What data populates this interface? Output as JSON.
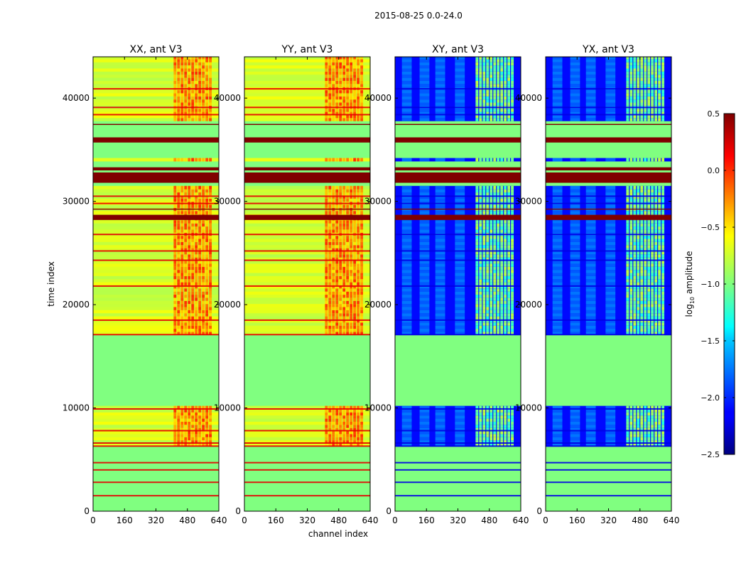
{
  "chart_data": {
    "type": "heatmap",
    "suptitle": "2015-08-25 0.0-24.0",
    "xlabel": "channel index",
    "ylabel": "time index",
    "xlim": [
      0,
      640
    ],
    "ylim": [
      0,
      44000
    ],
    "xticks": [
      0,
      160,
      320,
      480,
      640
    ],
    "xtick_labels": [
      "0",
      "160",
      "320",
      "480",
      "640"
    ],
    "yticks": [
      0,
      10000,
      20000,
      30000,
      40000
    ],
    "ytick_labels": [
      "0",
      "10000",
      "20000",
      "30000",
      "40000"
    ],
    "color_scale": {
      "label_main": "log",
      "label_sub": "10",
      "label_rest": " amplitude",
      "colormap": "jet",
      "vmin": -2.5,
      "vmax": 0.5,
      "ticks": [
        0.5,
        0.0,
        -0.5,
        -1.0,
        -1.5,
        -2.0,
        -2.5
      ],
      "tick_labels": [
        "0.5",
        "0.0",
        "−0.5",
        "−1.0",
        "−1.5",
        "−2.0",
        "−2.5"
      ]
    },
    "panels": [
      {
        "title": "XX, ant V3",
        "kind": "parallel",
        "base_value": -1.0
      },
      {
        "title": "YY, ant V3",
        "kind": "parallel",
        "base_value": -1.0
      },
      {
        "title": "XY, ant V3",
        "kind": "cross",
        "base_value": -2.1
      },
      {
        "title": "YX, ant V3",
        "kind": "cross",
        "base_value": -2.1
      }
    ],
    "flagged_bands": [
      {
        "start": 31800,
        "end": 32800,
        "value": 0.5
      },
      {
        "start": 35700,
        "end": 36200,
        "value": 0.5
      },
      {
        "start": 33000,
        "end": 33300,
        "value": 0.5
      },
      {
        "start": 37400,
        "end": 37500,
        "value": 0.5
      },
      {
        "start": 28200,
        "end": 28700,
        "value": 0.5
      },
      {
        "start": 29200,
        "end": 29300,
        "value": 0.5
      }
    ],
    "quiet_ranges": [
      {
        "start": 0,
        "end": 6200,
        "value": -1.0
      },
      {
        "start": 10000,
        "end": 17000,
        "value": -1.0
      },
      {
        "start": 31500,
        "end": 33800,
        "value": -1.0
      },
      {
        "start": 34000,
        "end": 37700,
        "value": -1.0
      }
    ]
  }
}
